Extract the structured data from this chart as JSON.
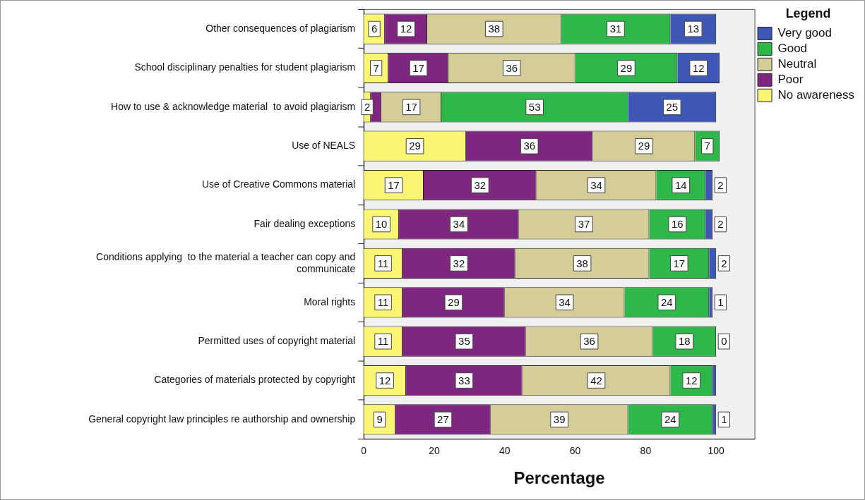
{
  "chart_data": {
    "type": "bar",
    "orientation": "horizontal",
    "stacked": true,
    "xlabel": "Percentage",
    "legend_title": "Legend",
    "legend": "right",
    "categories": [
      "Other consequences of plagiarism",
      "School disciplinary penalties for student plagiarism",
      "How to use & acknowledge material  to avoid plagiarism",
      "Use of NEALS",
      "Use of Creative Commons material",
      "Fair dealing exceptions",
      "Conditions applying  to the material a teacher can copy and communicate",
      "Moral rights",
      "Permitted uses of copyright material",
      "Categories of materials protected by copyright",
      "General copyright law principles re authorship and ownership"
    ],
    "series": [
      {
        "name": "No awareness",
        "color": "#faf572",
        "values": [
          6,
          7,
          2,
          29,
          17,
          10,
          11,
          11,
          11,
          12,
          9
        ],
        "value_labels": [
          "6",
          "7",
          "2",
          "29",
          "17",
          "10",
          "11",
          "11",
          "11",
          "12",
          "9"
        ]
      },
      {
        "name": "Poor",
        "color": "#7f2680",
        "values": [
          12,
          17,
          3,
          36,
          32,
          34,
          32,
          29,
          35,
          33,
          27
        ],
        "value_labels": [
          "12",
          "17",
          null,
          "36",
          "32",
          "34",
          "32",
          "29",
          "35",
          "33",
          "27"
        ]
      },
      {
        "name": "Neutral",
        "color": "#d5cd98",
        "values": [
          38,
          36,
          17,
          29,
          34,
          37,
          38,
          34,
          36,
          42,
          39
        ],
        "value_labels": [
          "38",
          "36",
          "17",
          "29",
          "34",
          "37",
          "38",
          "34",
          "36",
          "42",
          "39"
        ]
      },
      {
        "name": "Good",
        "color": "#2fb84a",
        "values": [
          31,
          29,
          53,
          7,
          14,
          16,
          17,
          24,
          18,
          12,
          24
        ],
        "value_labels": [
          "31",
          "29",
          "53",
          "7",
          "14",
          "16",
          "17",
          "24",
          "18",
          "12",
          "24"
        ]
      },
      {
        "name": "Very good",
        "color": "#3f58b5",
        "values": [
          13,
          12,
          25,
          null,
          2,
          2,
          2,
          1,
          0,
          1,
          1
        ],
        "value_labels": [
          "13",
          "12",
          "25",
          null,
          "2",
          "2",
          "2",
          "1",
          "0",
          null,
          "1"
        ]
      }
    ],
    "xlim": [
      0,
      111
    ],
    "xticks": [
      0,
      20,
      40,
      60,
      80,
      100
    ]
  }
}
